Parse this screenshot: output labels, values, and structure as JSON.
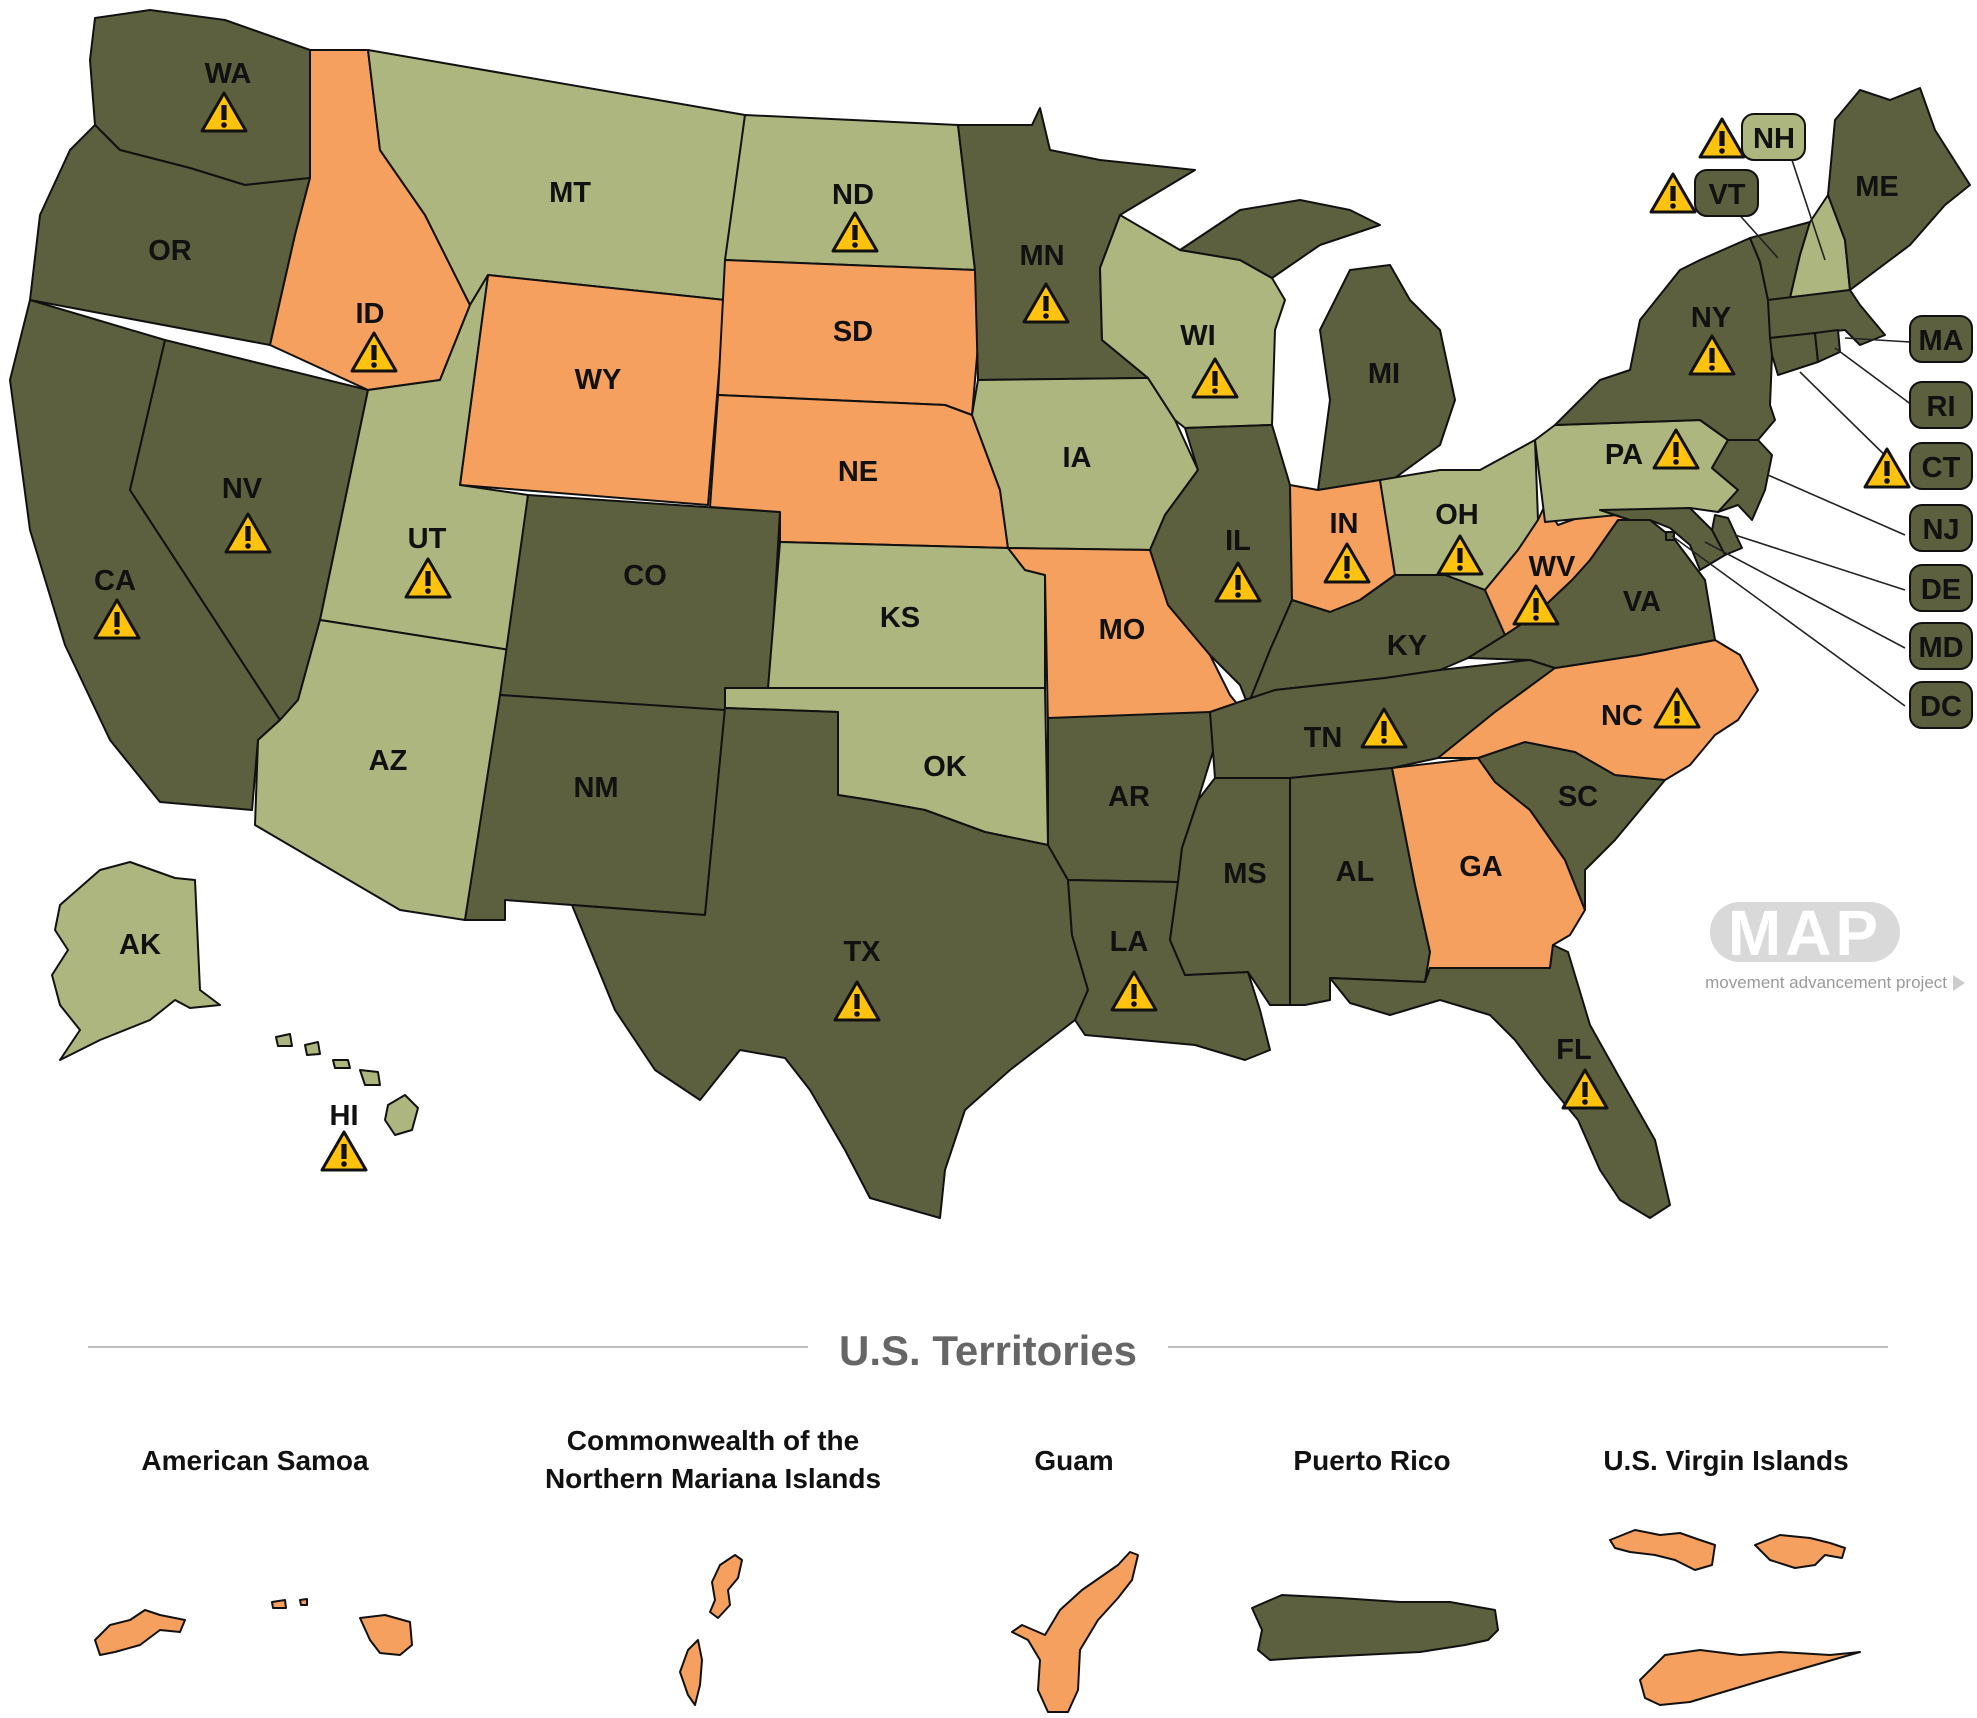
{
  "colors": {
    "dark": "#5c603e",
    "light": "#adb67e",
    "orange": "#f6a060",
    "warning_fill": "#ffc20e",
    "outline": "#111111",
    "logo_grey": "#d9d9d9"
  },
  "states": {
    "WA": {
      "label": "WA",
      "category": "dark",
      "warning": true
    },
    "OR": {
      "label": "OR",
      "category": "dark",
      "warning": false
    },
    "CA": {
      "label": "CA",
      "category": "dark",
      "warning": true
    },
    "NV": {
      "label": "NV",
      "category": "dark",
      "warning": true
    },
    "ID": {
      "label": "ID",
      "category": "orange",
      "warning": true
    },
    "MT": {
      "label": "MT",
      "category": "light",
      "warning": false
    },
    "WY": {
      "label": "WY",
      "category": "orange",
      "warning": false
    },
    "UT": {
      "label": "UT",
      "category": "light",
      "warning": true
    },
    "AZ": {
      "label": "AZ",
      "category": "light",
      "warning": false
    },
    "CO": {
      "label": "CO",
      "category": "dark",
      "warning": false
    },
    "NM": {
      "label": "NM",
      "category": "dark",
      "warning": false
    },
    "ND": {
      "label": "ND",
      "category": "light",
      "warning": true
    },
    "SD": {
      "label": "SD",
      "category": "orange",
      "warning": false
    },
    "NE": {
      "label": "NE",
      "category": "orange",
      "warning": false
    },
    "KS": {
      "label": "KS",
      "category": "light",
      "warning": false
    },
    "OK": {
      "label": "OK",
      "category": "light",
      "warning": false
    },
    "TX": {
      "label": "TX",
      "category": "dark",
      "warning": true
    },
    "MN": {
      "label": "MN",
      "category": "dark",
      "warning": true
    },
    "IA": {
      "label": "IA",
      "category": "light",
      "warning": false
    },
    "MO": {
      "label": "MO",
      "category": "orange",
      "warning": false
    },
    "AR": {
      "label": "AR",
      "category": "dark",
      "warning": false
    },
    "LA": {
      "label": "LA",
      "category": "dark",
      "warning": true
    },
    "WI": {
      "label": "WI",
      "category": "light",
      "warning": true
    },
    "IL": {
      "label": "IL",
      "category": "dark",
      "warning": true
    },
    "MI": {
      "label": "MI",
      "category": "dark",
      "warning": false
    },
    "IN": {
      "label": "IN",
      "category": "orange",
      "warning": true
    },
    "OH": {
      "label": "OH",
      "category": "light",
      "warning": true
    },
    "KY": {
      "label": "KY",
      "category": "dark",
      "warning": false
    },
    "TN": {
      "label": "TN",
      "category": "dark",
      "warning": true
    },
    "MS": {
      "label": "MS",
      "category": "dark",
      "warning": false
    },
    "AL": {
      "label": "AL",
      "category": "dark",
      "warning": false
    },
    "GA": {
      "label": "GA",
      "category": "orange",
      "warning": false
    },
    "FL": {
      "label": "FL",
      "category": "dark",
      "warning": true
    },
    "SC": {
      "label": "SC",
      "category": "dark",
      "warning": false
    },
    "NC": {
      "label": "NC",
      "category": "orange",
      "warning": true
    },
    "VA": {
      "label": "VA",
      "category": "dark",
      "warning": false
    },
    "WV": {
      "label": "WV",
      "category": "orange",
      "warning": true
    },
    "PA": {
      "label": "PA",
      "category": "light",
      "warning": true
    },
    "NY": {
      "label": "NY",
      "category": "dark",
      "warning": true
    },
    "ME": {
      "label": "ME",
      "category": "dark",
      "warning": false
    },
    "NH": {
      "label": "NH",
      "category": "light",
      "warning": true
    },
    "VT": {
      "label": "VT",
      "category": "dark",
      "warning": true
    },
    "MA": {
      "label": "MA",
      "category": "dark",
      "warning": false
    },
    "RI": {
      "label": "RI",
      "category": "dark",
      "warning": false
    },
    "CT": {
      "label": "CT",
      "category": "dark",
      "warning": true
    },
    "NJ": {
      "label": "NJ",
      "category": "dark",
      "warning": false
    },
    "DE": {
      "label": "DE",
      "category": "dark",
      "warning": false
    },
    "MD": {
      "label": "MD",
      "category": "dark",
      "warning": false
    },
    "DC": {
      "label": "DC",
      "category": "dark",
      "warning": false
    },
    "AK": {
      "label": "AK",
      "category": "light",
      "warning": false
    },
    "HI": {
      "label": "HI",
      "category": "light",
      "warning": true
    }
  },
  "territories": {
    "title": "U.S. Territories",
    "items": [
      {
        "name_lines": [
          "American Samoa"
        ],
        "category": "orange"
      },
      {
        "name_lines": [
          "Commonwealth of the",
          "Northern Mariana Islands"
        ],
        "category": "orange"
      },
      {
        "name_lines": [
          "Guam"
        ],
        "category": "orange"
      },
      {
        "name_lines": [
          "Puerto Rico"
        ],
        "category": "dark"
      },
      {
        "name_lines": [
          "U.S. Virgin Islands"
        ],
        "category": "orange"
      }
    ]
  },
  "logo": {
    "letters": "MAP",
    "subtitle": "movement advancement project"
  }
}
